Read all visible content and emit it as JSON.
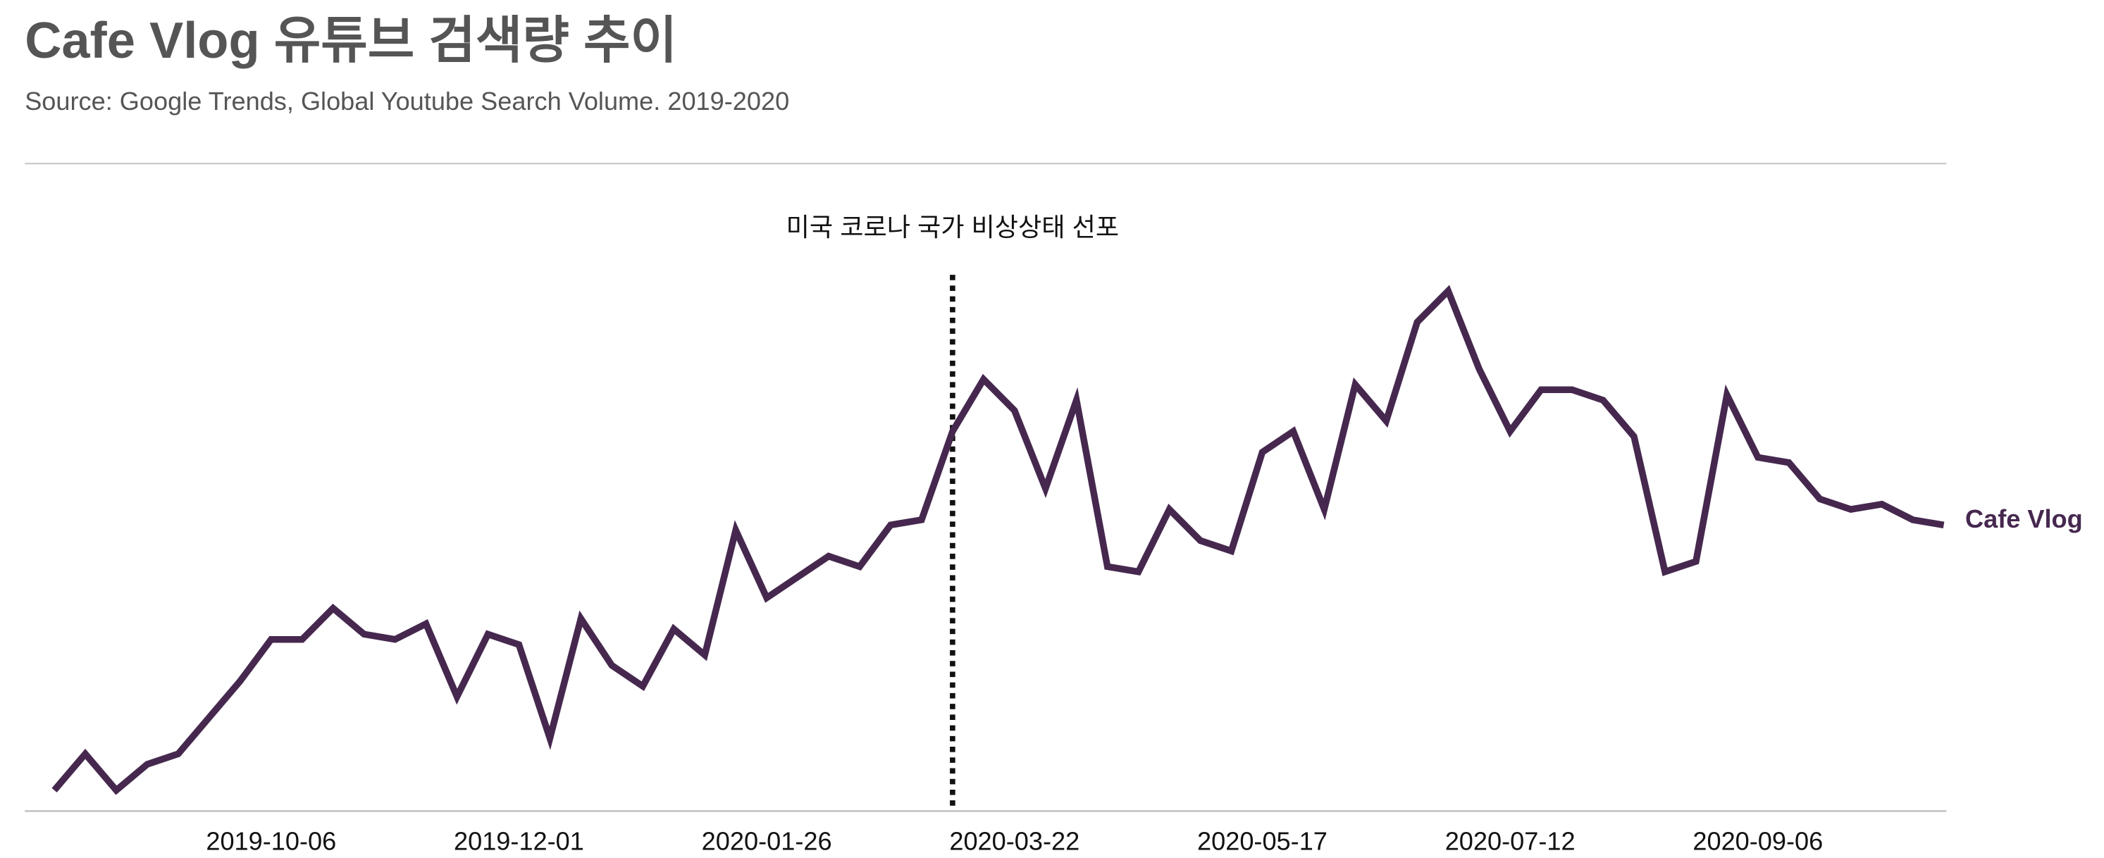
{
  "chart_data": {
    "type": "line",
    "title": "Cafe Vlog 유튜브 검색량 추이",
    "subtitle": "Source: Google Trends, Global Youtube Search Volume. 2019-2020",
    "x": [
      "2019-08-18",
      "2019-08-25",
      "2019-09-01",
      "2019-09-08",
      "2019-09-15",
      "2019-09-22",
      "2019-09-29",
      "2019-10-06",
      "2019-10-13",
      "2019-10-20",
      "2019-10-27",
      "2019-11-03",
      "2019-11-10",
      "2019-11-17",
      "2019-11-24",
      "2019-12-01",
      "2019-12-08",
      "2019-12-15",
      "2019-12-22",
      "2019-12-29",
      "2020-01-05",
      "2020-01-12",
      "2020-01-19",
      "2020-01-26",
      "2020-02-02",
      "2020-02-09",
      "2020-02-16",
      "2020-02-23",
      "2020-03-01",
      "2020-03-08",
      "2020-03-15",
      "2020-03-22",
      "2020-03-29",
      "2020-04-05",
      "2020-04-12",
      "2020-04-19",
      "2020-04-26",
      "2020-05-03",
      "2020-05-10",
      "2020-05-17",
      "2020-05-24",
      "2020-05-31",
      "2020-06-07",
      "2020-06-14",
      "2020-06-21",
      "2020-06-28",
      "2020-07-05",
      "2020-07-12",
      "2020-07-19",
      "2020-07-26",
      "2020-08-02",
      "2020-08-09",
      "2020-08-16",
      "2020-08-23",
      "2020-08-30",
      "2020-09-06",
      "2020-09-13",
      "2020-09-20",
      "2020-09-27",
      "2020-10-04",
      "2020-10-11",
      "2020-10-18"
    ],
    "series": [
      {
        "name": "Cafe Vlog",
        "color": "#46284f",
        "values": [
          4,
          11,
          4,
          9,
          11,
          18,
          25,
          33,
          33,
          39,
          34,
          33,
          36,
          22,
          34,
          32,
          14,
          37,
          28,
          24,
          35,
          30,
          54,
          41,
          45,
          49,
          47,
          55,
          56,
          73,
          83,
          77,
          62,
          79,
          47,
          46,
          58,
          52,
          50,
          69,
          73,
          58,
          82,
          75,
          94,
          100,
          85,
          73,
          81,
          81,
          79,
          72,
          46,
          48,
          80,
          68,
          67,
          60,
          58,
          59,
          56,
          55
        ]
      }
    ],
    "ylim": [
      0,
      100
    ],
    "xticks": [
      "2019-10-06",
      "2019-12-01",
      "2020-01-26",
      "2020-03-22",
      "2020-05-17",
      "2020-07-12",
      "2020-09-06"
    ],
    "annotation": {
      "text": "미국 코로나 국가 비상상태 선포",
      "x": "2020-03-08"
    }
  }
}
